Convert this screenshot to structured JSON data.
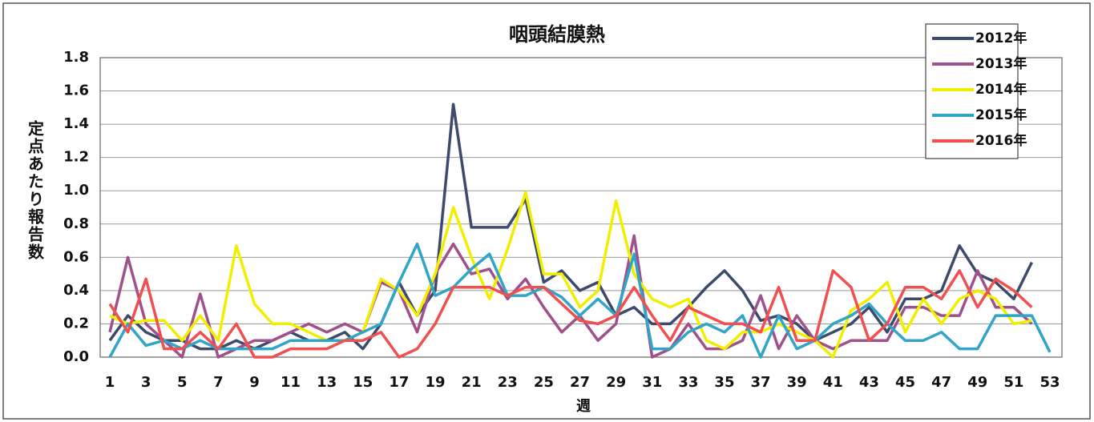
{
  "chart_data": {
    "type": "line",
    "title": "咽頭結膜熱",
    "ylabel": "定点あたり報告数",
    "xlabel": "週",
    "categories": [
      1,
      null,
      3,
      null,
      5,
      null,
      7,
      null,
      9,
      null,
      11,
      null,
      13,
      null,
      15,
      null,
      17,
      null,
      19,
      null,
      21,
      null,
      23,
      null,
      25,
      null,
      27,
      null,
      29,
      null,
      31,
      null,
      33,
      null,
      35,
      null,
      37,
      null,
      39,
      null,
      41,
      null,
      43,
      null,
      45,
      null,
      47,
      null,
      49,
      null,
      51,
      null,
      53
    ],
    "ylim": [
      0,
      1.8
    ],
    "yticks": [
      {
        "value": 0,
        "label": "0.0"
      },
      0.2,
      0.4,
      0.6,
      0.8,
      {
        "value": 1,
        "label": "1.0"
      },
      1.2,
      1.4,
      1.6,
      1.8
    ],
    "grid": true,
    "legend": "upper right",
    "series": [
      {
        "name": "2012年",
        "color": "#3d4a6b",
        "values": [
          0.1,
          0.25,
          0.15,
          0.1,
          0.1,
          0.05,
          0.05,
          0.1,
          0.05,
          0.1,
          0.15,
          0.1,
          0.1,
          0.15,
          0.05,
          0.2,
          0.45,
          0.25,
          0.4,
          1.52,
          0.78,
          0.78,
          0.78,
          0.95,
          0.45,
          0.52,
          0.4,
          0.45,
          0.25,
          0.3,
          0.2,
          0.2,
          0.3,
          0.42,
          0.52,
          0.4,
          0.22,
          0.25,
          0.2,
          0.1,
          0.15,
          0.2,
          0.3,
          0.15,
          0.35,
          0.35,
          0.4,
          0.67,
          0.5,
          0.45,
          0.35,
          0.57,
          null
        ]
      },
      {
        "name": "2013年",
        "color": "#a0508a",
        "values": [
          0.15,
          0.6,
          0.2,
          0.1,
          0.0,
          0.38,
          0.0,
          0.05,
          0.1,
          0.1,
          0.15,
          0.2,
          0.15,
          0.2,
          0.15,
          0.45,
          0.4,
          0.15,
          0.5,
          0.68,
          0.5,
          0.53,
          0.35,
          0.47,
          0.3,
          0.15,
          0.25,
          0.1,
          0.2,
          0.73,
          0.0,
          0.05,
          0.2,
          0.05,
          0.05,
          0.1,
          0.37,
          0.05,
          0.25,
          0.1,
          0.05,
          0.1,
          0.1,
          0.1,
          0.3,
          0.3,
          0.25,
          0.25,
          0.52,
          0.3,
          0.3,
          0.2,
          null
        ]
      },
      {
        "name": "2014年",
        "color": "#f2ee00",
        "values": [
          0.25,
          0.2,
          0.22,
          0.22,
          0.1,
          0.25,
          0.1,
          0.67,
          0.32,
          0.2,
          0.2,
          0.15,
          0.1,
          0.1,
          0.15,
          0.47,
          0.4,
          0.25,
          0.5,
          0.9,
          0.6,
          0.35,
          0.65,
          0.99,
          0.5,
          0.5,
          0.3,
          0.4,
          0.94,
          0.5,
          0.35,
          0.3,
          0.35,
          0.1,
          0.05,
          0.15,
          0.15,
          0.2,
          0.15,
          0.1,
          0.0,
          0.28,
          0.35,
          0.45,
          0.15,
          0.35,
          0.2,
          0.35,
          0.4,
          0.35,
          0.2,
          0.22,
          null
        ]
      },
      {
        "name": "2015年",
        "color": "#31a5c8",
        "values": [
          0.0,
          0.2,
          0.07,
          0.1,
          0.05,
          0.1,
          0.05,
          0.05,
          0.05,
          0.05,
          0.1,
          0.1,
          0.1,
          0.1,
          0.15,
          0.2,
          0.45,
          0.68,
          0.37,
          0.42,
          0.53,
          0.62,
          0.37,
          0.37,
          0.42,
          0.36,
          0.25,
          0.35,
          0.25,
          0.62,
          0.05,
          0.05,
          0.15,
          0.2,
          0.15,
          0.25,
          0.0,
          0.25,
          0.05,
          0.1,
          0.2,
          0.25,
          0.32,
          0.2,
          0.1,
          0.1,
          0.15,
          0.05,
          0.05,
          0.25,
          0.25,
          0.25,
          0.03
        ]
      },
      {
        "name": "2016年",
        "color": "#f05050",
        "values": [
          0.32,
          0.15,
          0.47,
          0.05,
          0.05,
          0.15,
          0.05,
          0.2,
          0.0,
          0.0,
          0.05,
          0.05,
          0.05,
          0.1,
          0.1,
          0.15,
          0.0,
          0.05,
          0.2,
          0.42,
          0.42,
          0.42,
          0.37,
          0.42,
          0.42,
          0.32,
          0.22,
          0.2,
          0.25,
          0.42,
          0.25,
          0.1,
          0.3,
          0.25,
          0.2,
          0.2,
          0.15,
          0.42,
          0.1,
          0.1,
          0.52,
          0.42,
          0.1,
          0.2,
          0.42,
          0.42,
          0.35,
          0.52,
          0.3,
          0.47,
          0.4,
          0.3,
          null
        ]
      }
    ]
  }
}
